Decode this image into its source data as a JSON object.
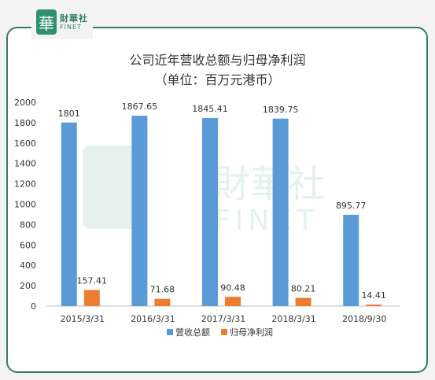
{
  "logo": {
    "glyph": "華",
    "cn": "財華社",
    "en": "FINET"
  },
  "chart_data": {
    "type": "bar",
    "title": "公司近年营收总额与归母净利润",
    "subtitle": "（单位：百万元港币）",
    "categories": [
      "2015/3/31",
      "2016/3/31",
      "2017/3/31",
      "2018/3/31",
      "2018/9/30"
    ],
    "series": [
      {
        "name": "营收总额",
        "color": "#5b9bd5",
        "values": [
          1801,
          1867.65,
          1845.41,
          1839.75,
          895.77
        ],
        "labels": [
          "1801",
          "1867.65",
          "1845.41",
          "1839.75",
          "895.77"
        ]
      },
      {
        "name": "归母净利润",
        "color": "#ed7d31",
        "values": [
          157.41,
          71.68,
          90.48,
          80.21,
          14.41
        ],
        "labels": [
          "157.41",
          "71.68",
          "90.48",
          "80.21",
          "14.41"
        ]
      }
    ],
    "ylim": [
      0,
      2000
    ],
    "yticks": [
      "0",
      "200",
      "400",
      "600",
      "800",
      "1000",
      "1200",
      "1400",
      "1600",
      "1800",
      "2000"
    ],
    "legend_position": "bottom",
    "grid": false,
    "watermark": {
      "cn": "財華社",
      "en": "FINET"
    }
  }
}
